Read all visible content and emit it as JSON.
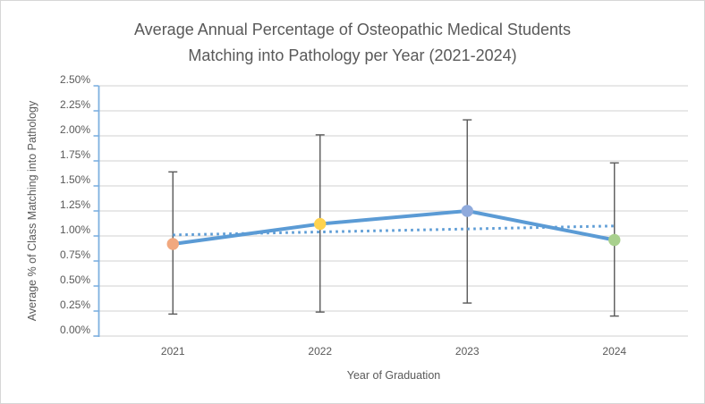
{
  "chart_data": {
    "type": "line",
    "title": "Average Annual Percentage of Osteopathic Medical Students\nMatching into Pathology per Year (2021-2024)",
    "xlabel": "Year of Graduation",
    "ylabel": "Average % of Class Matching into Pathology",
    "categories": [
      "2021",
      "2022",
      "2023",
      "2024"
    ],
    "series": [
      {
        "name": "Average % of class matching into pathology",
        "values": [
          0.92,
          1.12,
          1.25,
          0.96
        ],
        "line_color": "#5B9BD5",
        "marker_colors": [
          "#F1A87F",
          "#FFD34F",
          "#8FAADC",
          "#A8D08D"
        ],
        "error_bars": {
          "low": [
            0.22,
            0.24,
            0.33,
            0.2
          ],
          "high": [
            1.64,
            2.01,
            2.16,
            1.73
          ],
          "color": "#595959"
        }
      }
    ],
    "trendline": {
      "type": "linear",
      "style": "dotted",
      "color": "#5B9BD5",
      "start_value": 1.01,
      "end_value": 1.1
    },
    "ylim": [
      0,
      2.5
    ],
    "ytick_step": 0.25,
    "ytick_labels": [
      "0.00%",
      "0.25%",
      "0.50%",
      "0.75%",
      "1.00%",
      "1.25%",
      "1.50%",
      "1.75%",
      "2.00%",
      "2.25%",
      "2.50%"
    ],
    "grid": true,
    "legend": "none",
    "colors": {
      "gridline": "#D9D9D9",
      "axis_line": "#D9D9D9",
      "y_axis_line": "#7EB0E0",
      "text": "#595959",
      "background": "#FFFFFF",
      "border": "#D6D6D6"
    }
  }
}
